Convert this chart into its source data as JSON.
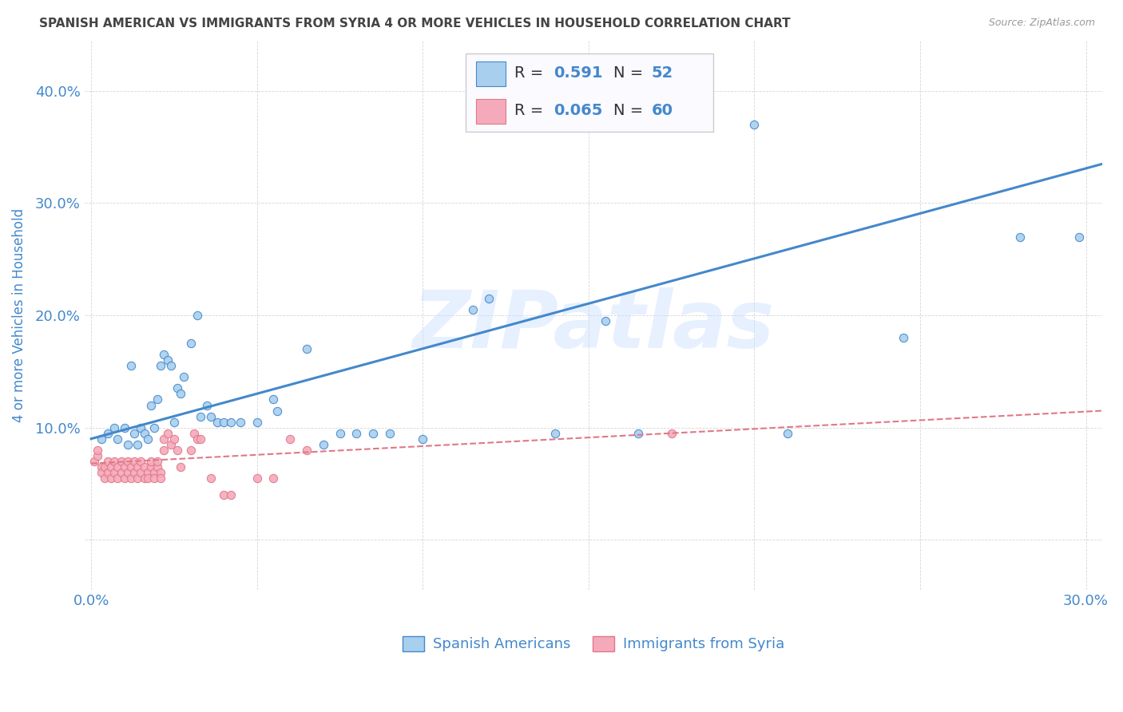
{
  "title": "SPANISH AMERICAN VS IMMIGRANTS FROM SYRIA 4 OR MORE VEHICLES IN HOUSEHOLD CORRELATION CHART",
  "source": "Source: ZipAtlas.com",
  "ylabel": "4 or more Vehicles in Household",
  "xlim": [
    -0.002,
    0.305
  ],
  "ylim": [
    -0.045,
    0.445
  ],
  "xticks": [
    0.0,
    0.05,
    0.1,
    0.15,
    0.2,
    0.25,
    0.3
  ],
  "yticks": [
    0.0,
    0.1,
    0.2,
    0.3,
    0.4
  ],
  "xtick_labels": [
    "0.0%",
    "",
    "",
    "",
    "",
    "",
    "30.0%"
  ],
  "ytick_labels": [
    "",
    "10.0%",
    "20.0%",
    "30.0%",
    "40.0%"
  ],
  "legend_bottom_label1": "Spanish Americans",
  "legend_bottom_label2": "Immigrants from Syria",
  "watermark": "ZIPatlas",
  "blue_color": "#A8CFEE",
  "pink_color": "#F5AABB",
  "blue_line_color": "#4488CC",
  "pink_line_color": "#E07888",
  "blue_scatter": [
    [
      0.003,
      0.09
    ],
    [
      0.005,
      0.095
    ],
    [
      0.007,
      0.1
    ],
    [
      0.008,
      0.09
    ],
    [
      0.01,
      0.1
    ],
    [
      0.011,
      0.085
    ],
    [
      0.012,
      0.155
    ],
    [
      0.013,
      0.095
    ],
    [
      0.014,
      0.085
    ],
    [
      0.015,
      0.1
    ],
    [
      0.016,
      0.095
    ],
    [
      0.017,
      0.09
    ],
    [
      0.018,
      0.12
    ],
    [
      0.019,
      0.1
    ],
    [
      0.02,
      0.125
    ],
    [
      0.021,
      0.155
    ],
    [
      0.022,
      0.165
    ],
    [
      0.023,
      0.16
    ],
    [
      0.024,
      0.155
    ],
    [
      0.025,
      0.105
    ],
    [
      0.026,
      0.135
    ],
    [
      0.027,
      0.13
    ],
    [
      0.028,
      0.145
    ],
    [
      0.03,
      0.175
    ],
    [
      0.032,
      0.2
    ],
    [
      0.033,
      0.11
    ],
    [
      0.035,
      0.12
    ],
    [
      0.036,
      0.11
    ],
    [
      0.038,
      0.105
    ],
    [
      0.04,
      0.105
    ],
    [
      0.042,
      0.105
    ],
    [
      0.045,
      0.105
    ],
    [
      0.05,
      0.105
    ],
    [
      0.055,
      0.125
    ],
    [
      0.056,
      0.115
    ],
    [
      0.065,
      0.17
    ],
    [
      0.07,
      0.085
    ],
    [
      0.075,
      0.095
    ],
    [
      0.08,
      0.095
    ],
    [
      0.085,
      0.095
    ],
    [
      0.09,
      0.095
    ],
    [
      0.1,
      0.09
    ],
    [
      0.115,
      0.205
    ],
    [
      0.12,
      0.215
    ],
    [
      0.14,
      0.095
    ],
    [
      0.155,
      0.195
    ],
    [
      0.165,
      0.095
    ],
    [
      0.2,
      0.37
    ],
    [
      0.21,
      0.095
    ],
    [
      0.245,
      0.18
    ],
    [
      0.28,
      0.27
    ],
    [
      0.298,
      0.27
    ]
  ],
  "pink_scatter": [
    [
      0.001,
      0.07
    ],
    [
      0.002,
      0.075
    ],
    [
      0.002,
      0.08
    ],
    [
      0.003,
      0.065
    ],
    [
      0.003,
      0.06
    ],
    [
      0.004,
      0.055
    ],
    [
      0.004,
      0.065
    ],
    [
      0.005,
      0.06
    ],
    [
      0.005,
      0.07
    ],
    [
      0.006,
      0.055
    ],
    [
      0.006,
      0.065
    ],
    [
      0.007,
      0.06
    ],
    [
      0.007,
      0.07
    ],
    [
      0.008,
      0.055
    ],
    [
      0.008,
      0.065
    ],
    [
      0.009,
      0.06
    ],
    [
      0.009,
      0.07
    ],
    [
      0.01,
      0.055
    ],
    [
      0.01,
      0.065
    ],
    [
      0.011,
      0.06
    ],
    [
      0.011,
      0.07
    ],
    [
      0.012,
      0.055
    ],
    [
      0.012,
      0.065
    ],
    [
      0.013,
      0.06
    ],
    [
      0.013,
      0.07
    ],
    [
      0.014,
      0.055
    ],
    [
      0.014,
      0.065
    ],
    [
      0.015,
      0.06
    ],
    [
      0.015,
      0.07
    ],
    [
      0.016,
      0.055
    ],
    [
      0.016,
      0.065
    ],
    [
      0.017,
      0.06
    ],
    [
      0.017,
      0.055
    ],
    [
      0.018,
      0.065
    ],
    [
      0.018,
      0.07
    ],
    [
      0.019,
      0.06
    ],
    [
      0.019,
      0.055
    ],
    [
      0.02,
      0.065
    ],
    [
      0.02,
      0.07
    ],
    [
      0.021,
      0.06
    ],
    [
      0.021,
      0.055
    ],
    [
      0.022,
      0.08
    ],
    [
      0.022,
      0.09
    ],
    [
      0.023,
      0.095
    ],
    [
      0.024,
      0.085
    ],
    [
      0.025,
      0.09
    ],
    [
      0.026,
      0.08
    ],
    [
      0.027,
      0.065
    ],
    [
      0.03,
      0.08
    ],
    [
      0.031,
      0.095
    ],
    [
      0.032,
      0.09
    ],
    [
      0.033,
      0.09
    ],
    [
      0.036,
      0.055
    ],
    [
      0.04,
      0.04
    ],
    [
      0.042,
      0.04
    ],
    [
      0.05,
      0.055
    ],
    [
      0.055,
      0.055
    ],
    [
      0.06,
      0.09
    ],
    [
      0.065,
      0.08
    ],
    [
      0.175,
      0.095
    ]
  ],
  "blue_line_x": [
    0.0,
    0.305
  ],
  "blue_line_y": [
    0.09,
    0.335
  ],
  "pink_line_x": [
    0.0,
    0.305
  ],
  "pink_line_y": [
    0.068,
    0.115
  ],
  "background_color": "#FFFFFF",
  "grid_color": "#BBBBBB",
  "title_color": "#444444",
  "axis_label_color": "#4488CC",
  "legend_text_color": "#333333",
  "scatter_size": 55
}
